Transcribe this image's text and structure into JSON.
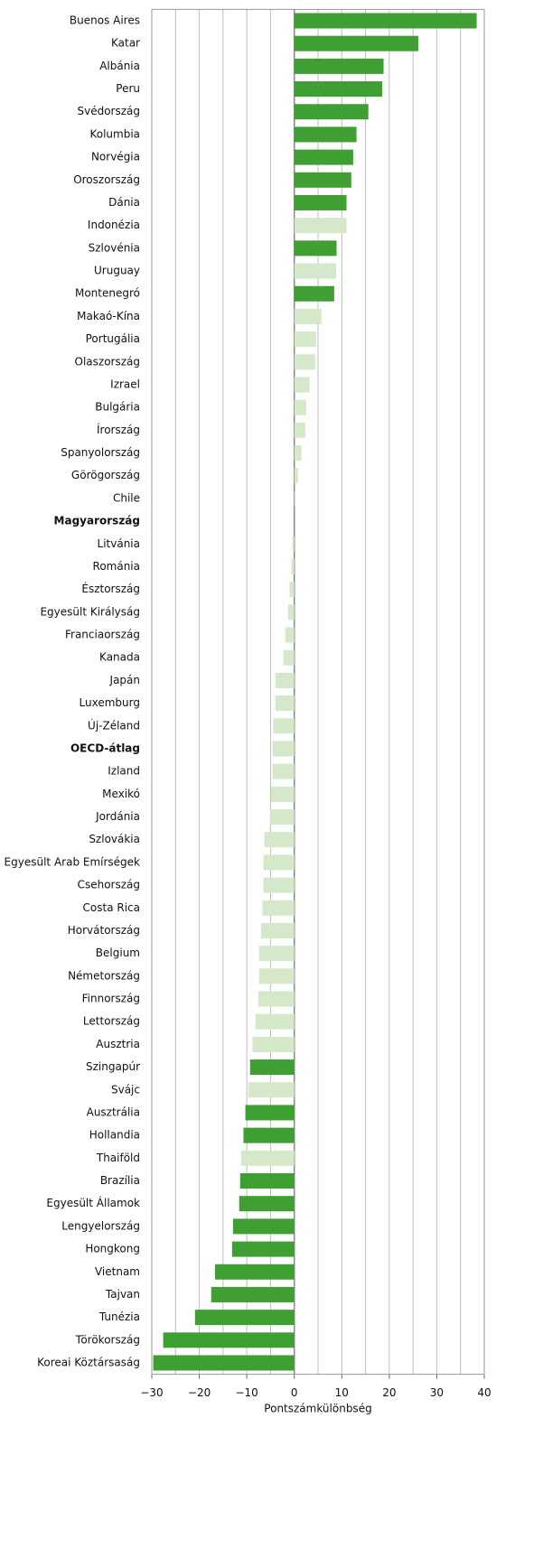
{
  "chart_data": {
    "type": "barh",
    "x_label": "Pontszámkülönbség",
    "categories": [
      "Buenos Aires",
      "Katar",
      "Albánia",
      "Peru",
      "Svédország",
      "Kolumbia",
      "Norvégia",
      "Oroszország",
      "Dánia",
      "Indonézia",
      "Szlovénia",
      "Uruguay",
      "Montenegró",
      "Makaó-Kína",
      "Portugália",
      "Olaszország",
      "Izrael",
      "Bulgária",
      "Írország",
      "Spanyolország",
      "Görögország",
      "Chile",
      "Magyarország",
      "Litvánia",
      "Románia",
      "Észtország",
      "Egyesült Királyság",
      "Franciaország",
      "Kanada",
      "Japán",
      "Luxemburg",
      "Új-Zéland",
      "OECD-átlag",
      "Izland",
      "Mexikó",
      "Jordánia",
      "Szlovákia",
      "Egyesült Arab Emírségek",
      "Csehország",
      "Costa Rica",
      "Horvátország",
      "Belgium",
      "Németország",
      "Finnország",
      "Lettország",
      "Ausztria",
      "Szingapúr",
      "Svájc",
      "Ausztrália",
      "Hollandia",
      "Thaiföld",
      "Brazília",
      "Egyesült Államok",
      "Lengyelország",
      "Hongkong",
      "Vietnam",
      "Tajvan",
      "Tunézia",
      "Törökország",
      "Koreai Köztársaság"
    ],
    "values": [
      38.4,
      26.1,
      18.8,
      18.5,
      15.6,
      13.1,
      12.4,
      12.0,
      11.0,
      11.0,
      8.9,
      8.8,
      8.4,
      5.7,
      4.6,
      4.4,
      3.2,
      2.5,
      2.3,
      1.5,
      0.8,
      0.1,
      0,
      -0.4,
      -0.6,
      -1.0,
      -1.3,
      -1.9,
      -2.3,
      -4.0,
      -4.0,
      -4.4,
      -4.6,
      -4.6,
      -4.9,
      -5.1,
      -6.3,
      -6.5,
      -6.5,
      -6.7,
      -7.0,
      -7.4,
      -7.4,
      -7.6,
      -8.2,
      -8.8,
      -9.3,
      -9.7,
      -10.3,
      -10.7,
      -11.2,
      -11.4,
      -11.6,
      -12.9,
      -13.1,
      -16.7,
      -17.5,
      -20.9,
      -27.6,
      -29.7
    ],
    "significant": [
      true,
      true,
      true,
      true,
      true,
      true,
      true,
      true,
      true,
      false,
      true,
      false,
      true,
      false,
      false,
      false,
      false,
      false,
      false,
      false,
      false,
      false,
      false,
      false,
      false,
      false,
      false,
      false,
      false,
      false,
      false,
      false,
      false,
      false,
      false,
      false,
      false,
      false,
      false,
      false,
      false,
      false,
      false,
      false,
      false,
      false,
      true,
      false,
      true,
      true,
      false,
      true,
      true,
      true,
      true,
      true,
      true,
      true,
      true,
      true
    ],
    "bold": [
      false,
      false,
      false,
      false,
      false,
      false,
      false,
      false,
      false,
      false,
      false,
      false,
      false,
      false,
      false,
      false,
      false,
      false,
      false,
      false,
      false,
      false,
      true,
      false,
      false,
      false,
      false,
      false,
      false,
      false,
      false,
      false,
      true,
      false,
      false,
      false,
      false,
      false,
      false,
      false,
      false,
      false,
      false,
      false,
      false,
      false,
      false,
      false,
      false,
      false,
      false,
      false,
      false,
      false,
      false,
      false,
      false,
      false,
      false,
      false
    ],
    "color_significant": "#3f9f33",
    "color_other": "#d5e8c9",
    "xlim": [
      -30,
      40
    ],
    "xticks": [
      {
        "value": -30,
        "label": "−30"
      },
      {
        "value": -20,
        "label": "−20"
      },
      {
        "value": -10,
        "label": "−10"
      },
      0,
      10,
      20,
      30,
      40
    ],
    "xminorticks": [
      -25,
      -15,
      -5,
      5,
      15,
      25,
      35
    ],
    "grid": true
  }
}
